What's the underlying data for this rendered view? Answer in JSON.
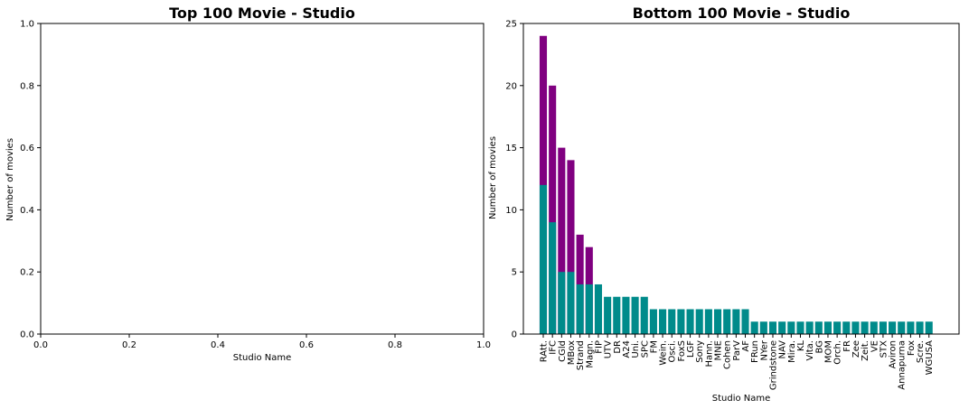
{
  "chart_data": [
    {
      "type": "bar",
      "title": "Top 100 Movie - Studio",
      "xlabel": "Studio Name",
      "ylabel": "Number of movies",
      "xlim": [
        0,
        1
      ],
      "ylim": [
        0,
        1
      ],
      "xticks": [
        "0.0",
        "0.2",
        "0.4",
        "0.6",
        "0.8",
        "1.0"
      ],
      "yticks": [
        "0.0",
        "0.2",
        "0.4",
        "0.6",
        "0.8",
        "1.0"
      ],
      "categories": [],
      "series": []
    },
    {
      "type": "bar",
      "title": "Bottom 100 Movie - Studio",
      "xlabel": "Studio Name",
      "ylabel": "Number of movies",
      "ylim": [
        0,
        25
      ],
      "yticks": [
        "0",
        "5",
        "10",
        "15",
        "20",
        "25"
      ],
      "categories": [
        "RAtt.",
        "IFC",
        "CGld",
        "MBox",
        "Strand",
        "Magn.",
        "FIP",
        "UTV",
        "DR",
        "A24",
        "Uni.",
        "SPC",
        "FM",
        "Wein.",
        "Osci.",
        "FoxS",
        "LGF",
        "Sony",
        "Hann.",
        "MNE",
        "Cohen",
        "ParV",
        "AF",
        "FRun",
        "NYer",
        "Grindstone",
        "NAV",
        "Mira.",
        "KL",
        "Vita.",
        "BG",
        "MOM",
        "Orch.",
        "FR",
        "Zee",
        "Zeit.",
        "VE",
        "STX",
        "Aviron",
        "Annapurna",
        "Fox",
        "Scre.",
        "WGUSA"
      ],
      "series": [
        {
          "color": "#008b8b",
          "values": [
            12,
            9,
            5,
            5,
            4,
            4,
            4,
            3,
            3,
            3,
            3,
            3,
            2,
            2,
            2,
            2,
            2,
            2,
            2,
            2,
            2,
            2,
            2,
            1,
            1,
            1,
            1,
            1,
            1,
            1,
            1,
            1,
            1,
            1,
            1,
            1,
            1,
            1,
            1,
            1,
            1,
            1,
            1
          ]
        },
        {
          "color": "#800080",
          "values": [
            24,
            20,
            15,
            14,
            8,
            7,
            0,
            0,
            0,
            0,
            0,
            0,
            0,
            0,
            0,
            0,
            0,
            0,
            0,
            0,
            0,
            0,
            0,
            0,
            0,
            0,
            0,
            0,
            0,
            0,
            0,
            0,
            0,
            0,
            0,
            0,
            0,
            0,
            0,
            0,
            0,
            0,
            0
          ]
        }
      ]
    }
  ]
}
